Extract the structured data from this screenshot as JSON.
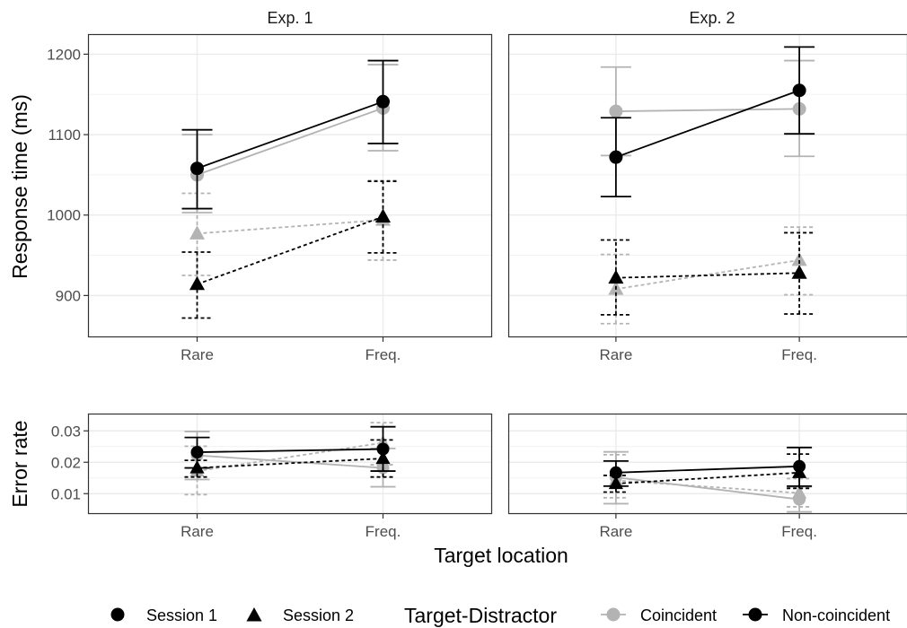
{
  "chart_data": {
    "type": "line",
    "panels": [
      {
        "name": "Exp. 1"
      },
      {
        "name": "Exp. 2"
      }
    ],
    "rows": [
      {
        "name": "Response time",
        "ylabel": "Response time (ms)",
        "ylim": [
          848,
          1225
        ],
        "yticks": [
          900,
          1000,
          1100,
          1200
        ],
        "ytick_labels": [
          "900",
          "1000",
          "1100",
          "1200"
        ],
        "series": [
          {
            "panel": 0,
            "session": "Session 1",
            "condition": "Coincident",
            "values": [
              1050,
              1133
            ],
            "lower": [
              1003,
              1080
            ],
            "upper": [
              1100,
              1187
            ]
          },
          {
            "panel": 0,
            "session": "Session 1",
            "condition": "Non-coincident",
            "values": [
              1058,
              1141
            ],
            "lower": [
              1008,
              1089
            ],
            "upper": [
              1106,
              1192
            ]
          },
          {
            "panel": 0,
            "session": "Session 2",
            "condition": "Coincident",
            "values": [
              977,
              994
            ],
            "lower": [
              925,
              944
            ],
            "upper": [
              1027,
              1043
            ]
          },
          {
            "panel": 0,
            "session": "Session 2",
            "condition": "Non-coincident",
            "values": [
              914,
              998
            ],
            "lower": [
              872,
              953
            ],
            "upper": [
              954,
              1042
            ]
          },
          {
            "panel": 1,
            "session": "Session 1",
            "condition": "Coincident",
            "values": [
              1129,
              1132
            ],
            "lower": [
              1074,
              1073
            ],
            "upper": [
              1184,
              1192
            ]
          },
          {
            "panel": 1,
            "session": "Session 1",
            "condition": "Non-coincident",
            "values": [
              1072,
              1155
            ],
            "lower": [
              1023,
              1101
            ],
            "upper": [
              1121,
              1209
            ]
          },
          {
            "panel": 1,
            "session": "Session 2",
            "condition": "Coincident",
            "values": [
              908,
              944
            ],
            "lower": [
              865,
              901
            ],
            "upper": [
              951,
              985
            ]
          },
          {
            "panel": 1,
            "session": "Session 2",
            "condition": "Non-coincident",
            "values": [
              922,
              928
            ],
            "lower": [
              876,
              877
            ],
            "upper": [
              969,
              978
            ]
          }
        ]
      },
      {
        "name": "Error rate",
        "ylabel": "Error rate",
        "ylim": [
          0.0035,
          0.0355
        ],
        "yticks": [
          0.01,
          0.02,
          0.03
        ],
        "ytick_labels": [
          "0.01",
          "0.02",
          "0.03"
        ],
        "series": [
          {
            "panel": 0,
            "session": "Session 1",
            "condition": "Coincident",
            "values": [
              0.0222,
              0.0182
            ],
            "lower": [
              0.0145,
              0.0122
            ],
            "upper": [
              0.0298,
              0.0244
            ]
          },
          {
            "panel": 0,
            "session": "Session 1",
            "condition": "Non-coincident",
            "values": [
              0.0232,
              0.0242
            ],
            "lower": [
              0.0182,
              0.0172
            ],
            "upper": [
              0.0279,
              0.0313
            ]
          },
          {
            "panel": 0,
            "session": "Session 2",
            "condition": "Coincident",
            "values": [
              0.0172,
              0.0262
            ],
            "lower": [
              0.0097,
              0.0192
            ],
            "upper": [
              0.0251,
              0.0326
            ]
          },
          {
            "panel": 0,
            "session": "Session 2",
            "condition": "Non-coincident",
            "values": [
              0.0182,
              0.0212
            ],
            "lower": [
              0.0153,
              0.0153
            ],
            "upper": [
              0.0206,
              0.0271
            ]
          },
          {
            "panel": 1,
            "session": "Session 1",
            "condition": "Coincident",
            "values": [
              0.0152,
              0.0082
            ],
            "lower": [
              0.0068,
              0.0042
            ],
            "upper": [
              0.0233,
              0.0122
            ]
          },
          {
            "panel": 1,
            "session": "Session 1",
            "condition": "Non-coincident",
            "values": [
              0.0167,
              0.0187
            ],
            "lower": [
              0.0124,
              0.0124
            ],
            "upper": [
              0.0204,
              0.0247
            ]
          },
          {
            "panel": 1,
            "session": "Session 2",
            "condition": "Coincident",
            "values": [
              0.0142,
              0.0102
            ],
            "lower": [
              0.0087,
              0.0058
            ],
            "upper": [
              0.0224,
              0.0148
            ]
          },
          {
            "panel": 1,
            "session": "Session 2",
            "condition": "Non-coincident",
            "values": [
              0.0132,
              0.0167
            ],
            "lower": [
              0.0105,
              0.0117
            ],
            "upper": [
              0.0158,
              0.0226
            ]
          }
        ]
      }
    ],
    "categories": [
      "Rare",
      "Freq."
    ],
    "xlabel": "Target location",
    "legend": {
      "position": "bottom",
      "shape_entries": [
        {
          "label": "Session 1",
          "shape": "circle"
        },
        {
          "label": "Session 2",
          "shape": "triangle"
        }
      ],
      "color_title": "Target-Distractor",
      "color_entries": [
        {
          "label": "Coincident",
          "color": "#b3b3b3"
        },
        {
          "label": "Non-coincident",
          "color": "#000000"
        }
      ]
    },
    "grid": true,
    "colors": {
      "Coincident": "#b3b3b3",
      "Non-coincident": "#000000",
      "grid": "#ebebeb",
      "panel_border": "#333333"
    }
  }
}
